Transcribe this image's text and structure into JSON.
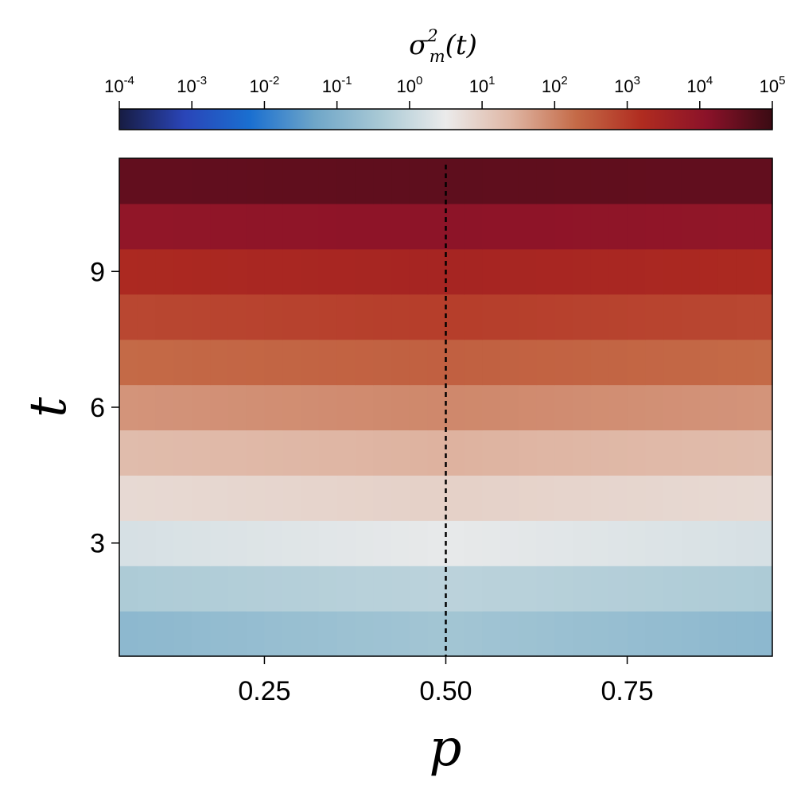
{
  "chart_data": {
    "type": "heatmap",
    "title": "",
    "xlabel": "p",
    "ylabel": "t",
    "xlim": [
      0.05,
      0.95
    ],
    "ylim": [
      0.5,
      11.5
    ],
    "x_ticks": [
      0.25,
      0.5,
      0.75
    ],
    "x_tick_labels": [
      "0.25",
      "0.50",
      "0.75"
    ],
    "y_ticks": [
      3,
      6,
      9
    ],
    "y_tick_labels": [
      "3",
      "6",
      "9"
    ],
    "vline": {
      "x": 0.5,
      "style": "dashed",
      "color": "#000000"
    },
    "rows_t": [
      1,
      2,
      3,
      4,
      5,
      6,
      7,
      8,
      9,
      10,
      11
    ],
    "rows_log10_value_edge": [
      -0.85,
      -0.35,
      0.2,
      0.8,
      1.3,
      1.8,
      2.3,
      2.8,
      3.3,
      3.95,
      4.55
    ],
    "rows_log10_value_center": [
      -0.5,
      -0.15,
      0.45,
      0.95,
      1.45,
      1.95,
      2.45,
      2.95,
      3.45,
      4.05,
      4.6
    ],
    "colorbar": {
      "label": "σ²_m(t)",
      "label_main": "σ",
      "label_sup": "2",
      "label_sub": "m",
      "label_tail": "(t)",
      "scale": "log",
      "range_log10": [
        -4,
        5
      ],
      "tick_base": "10",
      "tick_exponents": [
        "-4",
        "-3",
        "-2",
        "-1",
        "0",
        "1",
        "2",
        "3",
        "4",
        "5"
      ],
      "colors": [
        "#171c42",
        "#2a45b8",
        "#1a6fd0",
        "#6fa6c8",
        "#a9c9d5",
        "#ebebeb",
        "#dfb6a4",
        "#c46a47",
        "#b02c20",
        "#8b1229",
        "#3a0b13"
      ]
    }
  }
}
